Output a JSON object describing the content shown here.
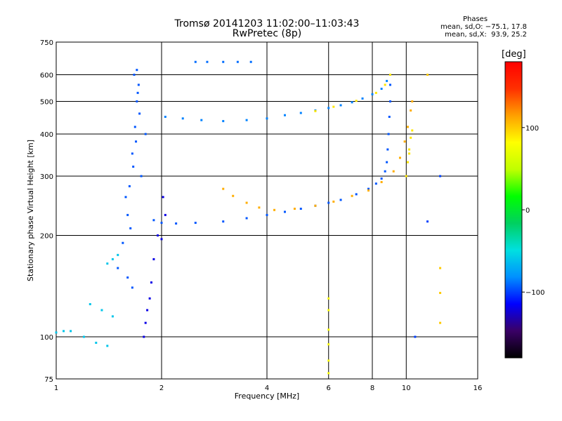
{
  "header": {
    "title": "Tromsø 20141203 11:02:00–11:03:43",
    "subtitle": "RwPretec (8p)"
  },
  "stats": {
    "heading": "Phases",
    "line_o": "mean, sd,O: −75.1, 17.8",
    "line_x": "mean, sd,X:  93.9, 25.2"
  },
  "colorbar": {
    "unit": "[deg]",
    "ticks": [
      {
        "label": "100",
        "value": 100
      },
      {
        "label": "0",
        "value": 0
      },
      {
        "label": "−100",
        "value": -100
      }
    ],
    "range": [
      -180,
      180
    ],
    "colors": [
      "#000000",
      "#3a0066",
      "#0000ff",
      "#0090ff",
      "#00e0e0",
      "#00d060",
      "#00ff00",
      "#c0ff00",
      "#ffff00",
      "#ffa000",
      "#ff3000",
      "#ff0000"
    ]
  },
  "chart_data": {
    "type": "scatter",
    "xscale": "log",
    "yscale": "log",
    "xlim": [
      1,
      16
    ],
    "ylim": [
      75,
      750
    ],
    "grid": true,
    "xlabel": "Frequency [MHz]",
    "ylabel": "Stationary phase Virtual Height [km]",
    "xticks": [
      {
        "label": "1",
        "value": 1
      },
      {
        "label": "2",
        "value": 2
      },
      {
        "label": "4",
        "value": 4
      },
      {
        "label": "6",
        "value": 6
      },
      {
        "label": "8",
        "value": 8
      },
      {
        "label": "10",
        "value": 10
      },
      {
        "label": "16",
        "value": 16
      }
    ],
    "yticks": [
      {
        "label": "75",
        "value": 75
      },
      {
        "label": "100",
        "value": 100
      },
      {
        "label": "200",
        "value": 200
      },
      {
        "label": "300",
        "value": 300
      },
      {
        "label": "400",
        "value": 400
      },
      {
        "label": "500",
        "value": 500
      },
      {
        "label": "600",
        "value": 600
      },
      {
        "label": "750",
        "value": 750
      }
    ],
    "traces": [
      {
        "name": "",
        "phase": -95,
        "points": [
          [
            1.5,
            160
          ],
          [
            1.55,
            190
          ],
          [
            1.6,
            230
          ],
          [
            1.62,
            280
          ],
          [
            1.65,
            350
          ],
          [
            1.68,
            420
          ],
          [
            1.7,
            500
          ],
          [
            1.72,
            560
          ],
          [
            1.7,
            620
          ],
          [
            1.65,
            140
          ],
          [
            1.6,
            150
          ],
          [
            1.75,
            300
          ],
          [
            1.8,
            400
          ],
          [
            1.58,
            260
          ],
          [
            1.66,
            320
          ],
          [
            1.73,
            460
          ],
          [
            1.69,
            380
          ],
          [
            1.63,
            210
          ],
          [
            1.71,
            530
          ],
          [
            1.67,
            600
          ]
        ]
      },
      {
        "name": "",
        "phase": -85,
        "points": [
          [
            2.05,
            450
          ],
          [
            2.3,
            445
          ],
          [
            2.6,
            440
          ],
          [
            3.0,
            437
          ],
          [
            3.5,
            440
          ],
          [
            4.0,
            445
          ],
          [
            4.5,
            455
          ],
          [
            5.0,
            462
          ],
          [
            5.5,
            470
          ],
          [
            6.0,
            478
          ],
          [
            6.5,
            487
          ],
          [
            7.0,
            497
          ],
          [
            7.5,
            510
          ],
          [
            8.0,
            525
          ],
          [
            8.5,
            545
          ],
          [
            8.8,
            575
          ]
        ]
      },
      {
        "name": "",
        "phase": 90,
        "points": [
          [
            5.5,
            468
          ],
          [
            6.2,
            482
          ],
          [
            7.2,
            502
          ],
          [
            8.2,
            530
          ],
          [
            8.7,
            560
          ],
          [
            9.0,
            600
          ]
        ]
      },
      {
        "name": "",
        "phase": -95,
        "points": [
          [
            9.0,
            560
          ],
          [
            9.0,
            500
          ],
          [
            8.95,
            450
          ],
          [
            8.9,
            400
          ],
          [
            8.85,
            360
          ],
          [
            8.8,
            330
          ],
          [
            8.7,
            310
          ],
          [
            8.5,
            295
          ],
          [
            8.2,
            285
          ],
          [
            7.8,
            275
          ],
          [
            7.2,
            265
          ],
          [
            6.5,
            255
          ],
          [
            6.0,
            250
          ],
          [
            5.5,
            245
          ],
          [
            5.0,
            240
          ],
          [
            4.5,
            235
          ],
          [
            4.0,
            230
          ],
          [
            3.5,
            225
          ],
          [
            3.0,
            220
          ],
          [
            2.5,
            218
          ],
          [
            2.2,
            217
          ],
          [
            2.0,
            218
          ],
          [
            1.9,
            222
          ]
        ]
      },
      {
        "name": "",
        "phase": 110,
        "points": [
          [
            3.0,
            275
          ],
          [
            3.2,
            262
          ],
          [
            3.5,
            250
          ],
          [
            3.8,
            242
          ],
          [
            4.2,
            238
          ],
          [
            4.8,
            240
          ],
          [
            5.5,
            245
          ],
          [
            6.2,
            252
          ],
          [
            7.0,
            262
          ],
          [
            7.8,
            272
          ],
          [
            8.5,
            288
          ],
          [
            9.2,
            310
          ],
          [
            9.6,
            340
          ],
          [
            9.9,
            380
          ],
          [
            10.1,
            420
          ],
          [
            10.3,
            470
          ],
          [
            10.4,
            500
          ]
        ]
      },
      {
        "name": "",
        "phase": 90,
        "points": [
          [
            10.0,
            300
          ],
          [
            10.1,
            330
          ],
          [
            10.2,
            360
          ],
          [
            10.3,
            390
          ],
          [
            10.4,
            410
          ],
          [
            10.2,
            350
          ]
        ]
      },
      {
        "name": "",
        "phase": -90,
        "points": [
          [
            2.5,
            655
          ],
          [
            2.7,
            655
          ],
          [
            3.0,
            655
          ],
          [
            3.3,
            655
          ],
          [
            3.6,
            655
          ]
        ]
      },
      {
        "name": "",
        "phase": 80,
        "points": [
          [
            6.0,
            120
          ],
          [
            6.0,
            105
          ],
          [
            6.0,
            95
          ],
          [
            6.0,
            85
          ],
          [
            6.0,
            78
          ],
          [
            6.0,
            130
          ]
        ]
      },
      {
        "name": "",
        "phase": -60,
        "points": [
          [
            1.0,
            103
          ],
          [
            1.05,
            104
          ],
          [
            1.1,
            104
          ],
          [
            1.2,
            100
          ],
          [
            1.3,
            96
          ],
          [
            1.4,
            94
          ],
          [
            1.25,
            125
          ],
          [
            1.35,
            120
          ],
          [
            1.45,
            115
          ],
          [
            1.4,
            165
          ],
          [
            1.45,
            170
          ],
          [
            1.5,
            175
          ]
        ]
      },
      {
        "name": "",
        "phase": -120,
        "points": [
          [
            1.8,
            110
          ],
          [
            1.82,
            120
          ],
          [
            1.85,
            130
          ],
          [
            1.87,
            145
          ],
          [
            1.9,
            170
          ],
          [
            1.95,
            200
          ],
          [
            1.78,
            100
          ],
          [
            2.0,
            195
          ],
          [
            2.05,
            230
          ],
          [
            2.02,
            260
          ]
        ]
      },
      {
        "name": "",
        "phase": 100,
        "points": [
          [
            12.5,
            160
          ],
          [
            12.5,
            135
          ],
          [
            12.5,
            110
          ],
          [
            11.5,
            600
          ]
        ]
      },
      {
        "name": "",
        "phase": -100,
        "points": [
          [
            10.6,
            100
          ],
          [
            11.5,
            220
          ],
          [
            12.5,
            300
          ]
        ]
      }
    ]
  }
}
